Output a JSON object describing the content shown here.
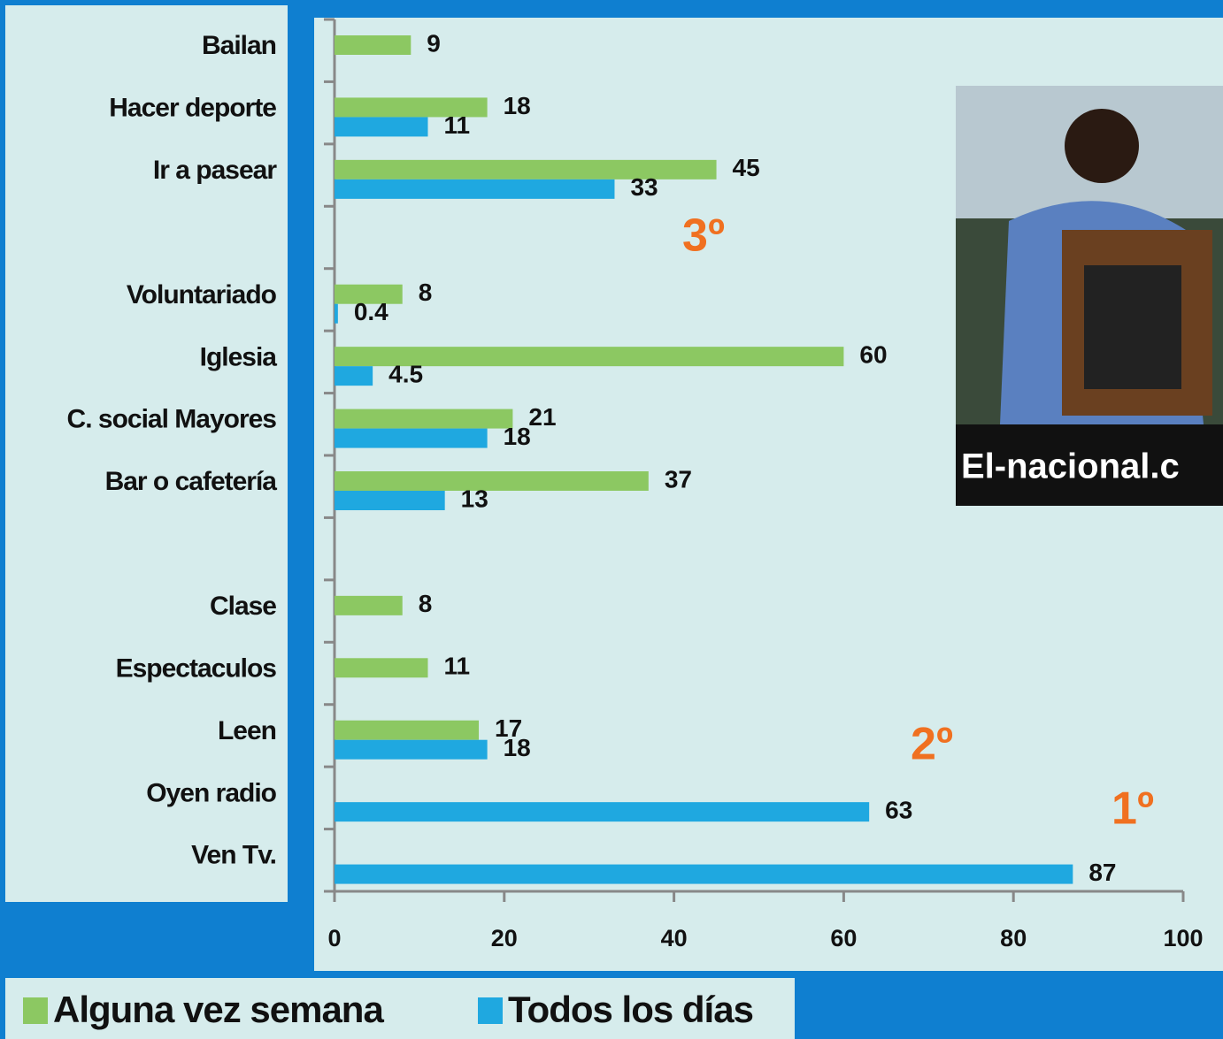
{
  "chart_data": {
    "type": "bar",
    "orientation": "horizontal",
    "categories": [
      "Bailan",
      "Hacer deporte",
      "Ir a pasear",
      null,
      "Voluntariado",
      "Iglesia",
      "C. social Mayores",
      "Bar o cafetería",
      null,
      "Clase",
      "Espectaculos",
      "Leen",
      "Oyen radio",
      "Ven Tv."
    ],
    "series": [
      {
        "name": "Alguna vez semana",
        "color": "#8cc862",
        "values": [
          9,
          18,
          45,
          null,
          8,
          60,
          21,
          37,
          null,
          8,
          11,
          17,
          null,
          null
        ]
      },
      {
        "name": "Todos los días",
        "color": "#1fa8e0",
        "values": [
          null,
          11,
          33,
          null,
          0.4,
          4.5,
          18,
          13,
          null,
          null,
          null,
          18,
          63,
          87
        ]
      }
    ],
    "xlim": [
      0,
      100
    ],
    "xticks": [
      0,
      20,
      40,
      60,
      80,
      100
    ],
    "annotations": [
      "3º",
      "2º",
      "1º"
    ],
    "photo_caption": "El-nacional.c"
  }
}
